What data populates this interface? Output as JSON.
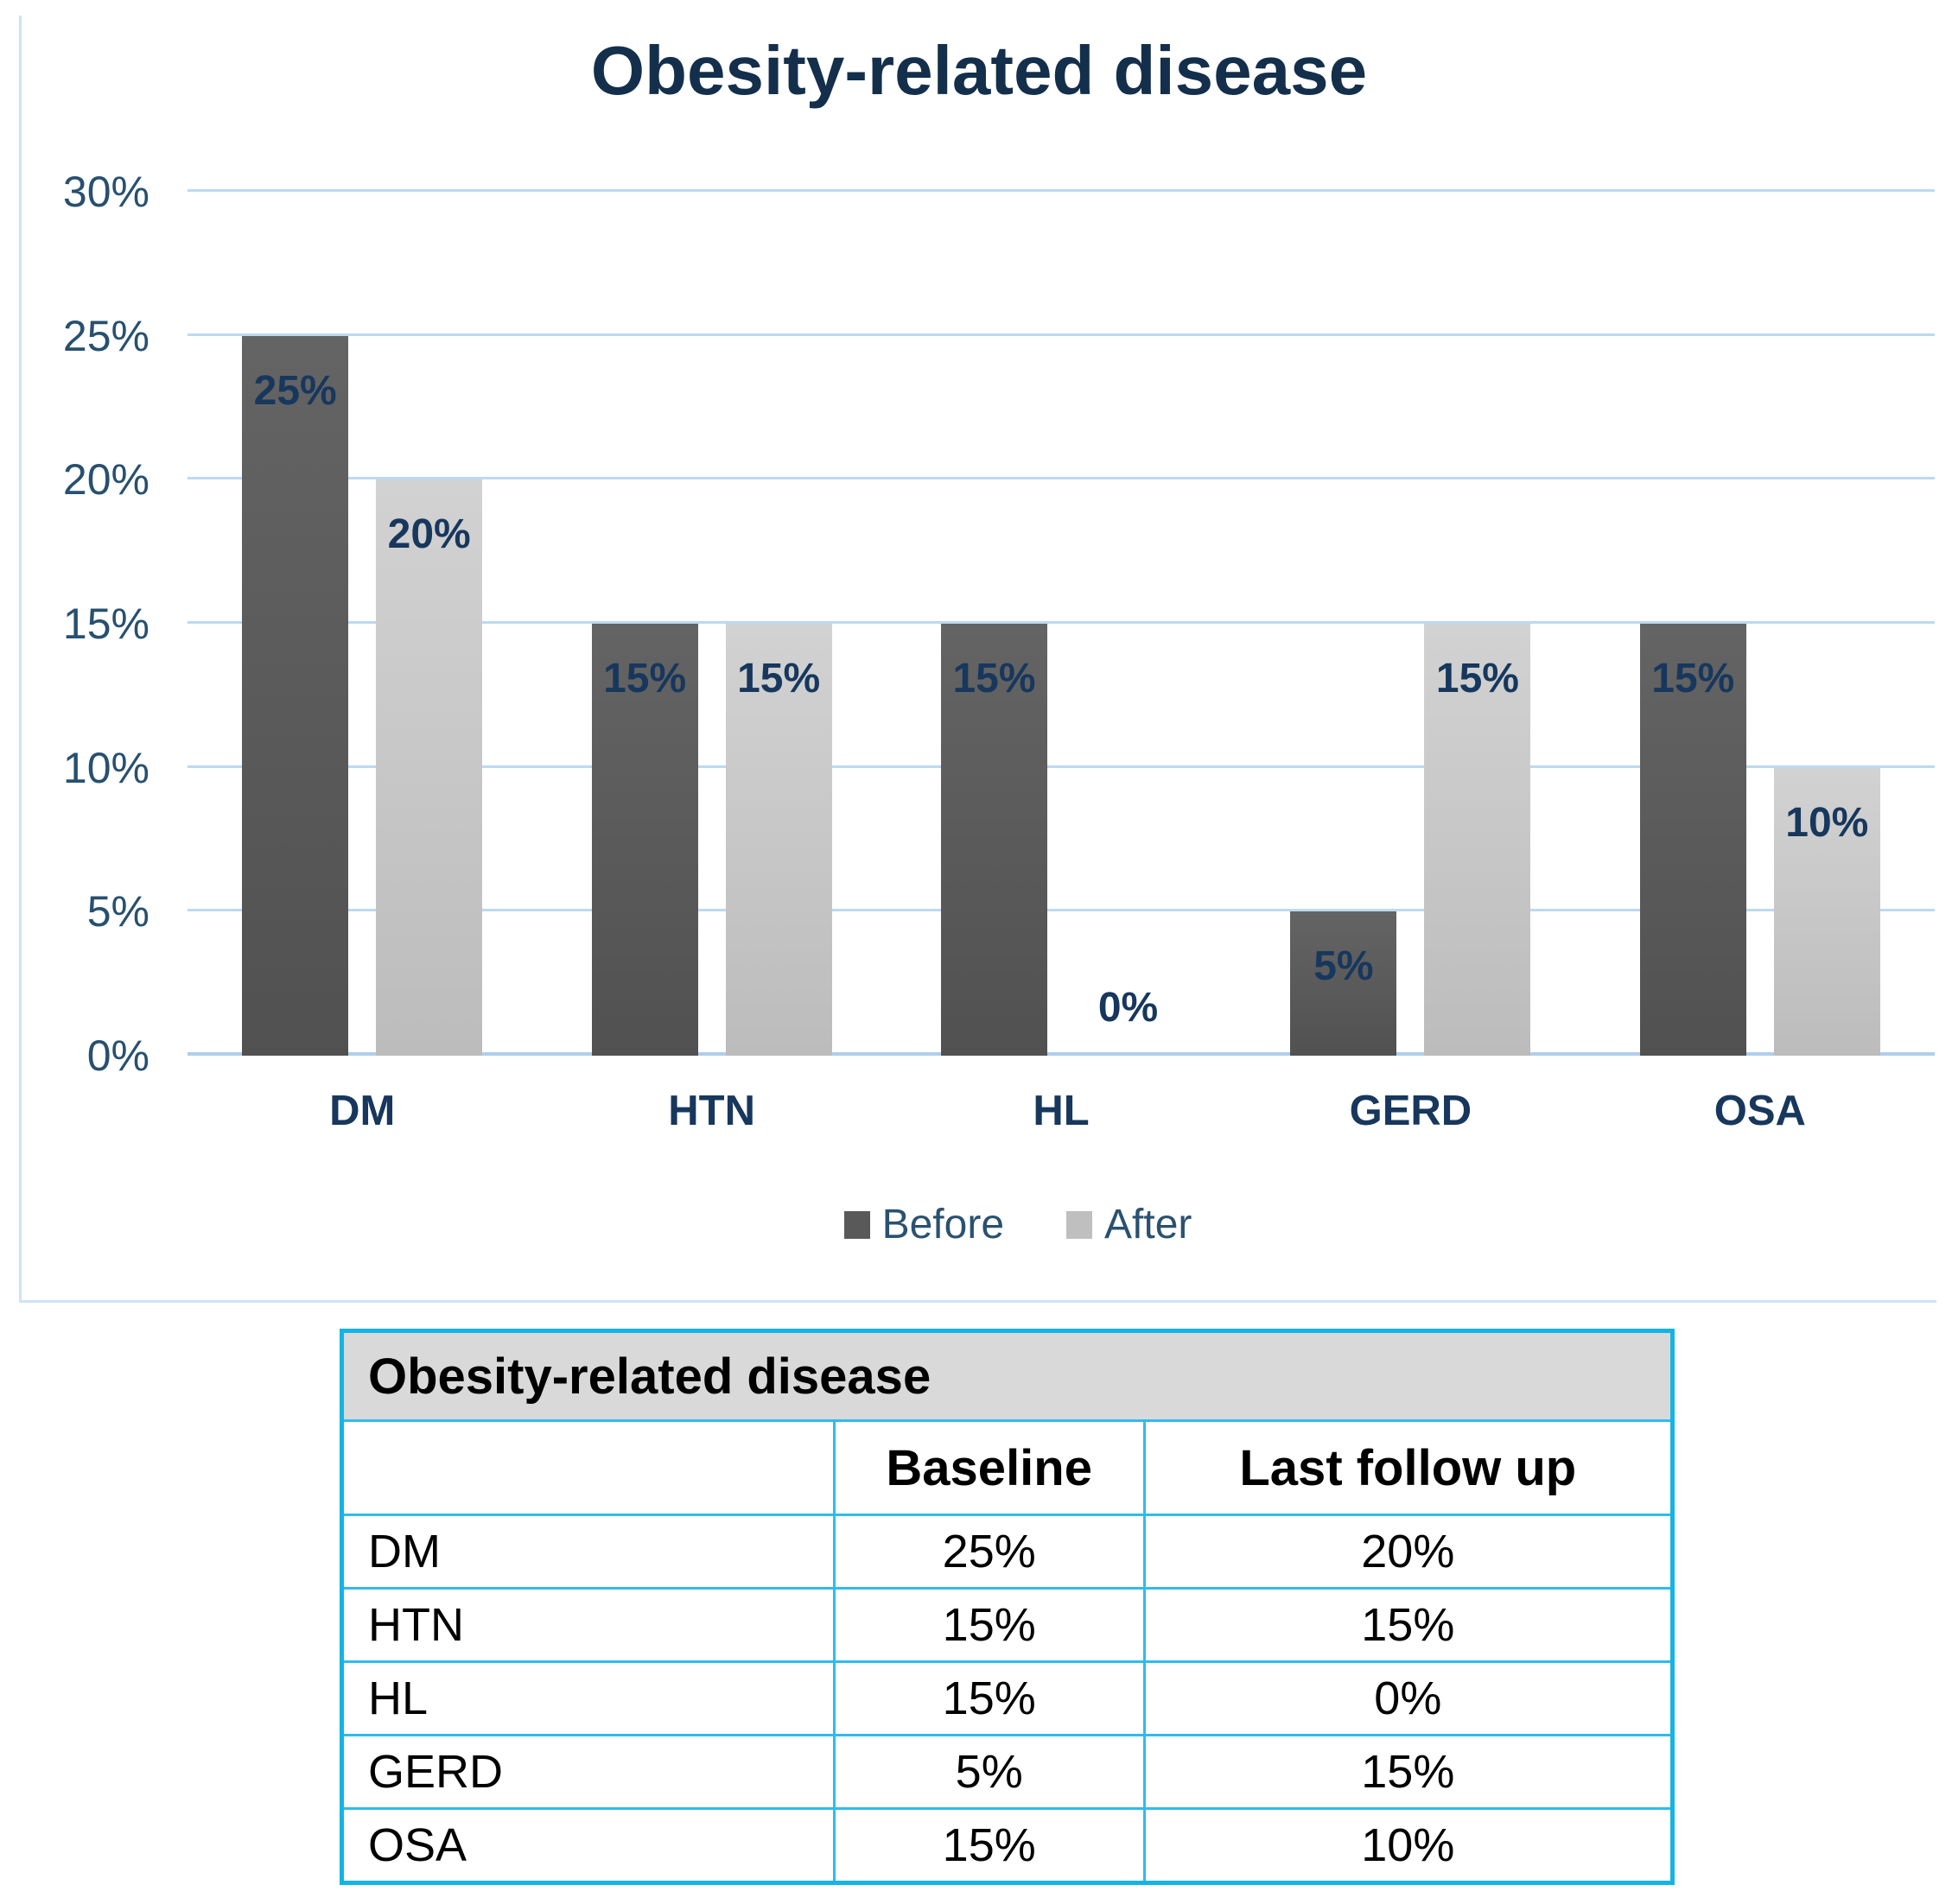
{
  "chart_data": {
    "type": "bar",
    "title": "Obesity-related disease",
    "categories": [
      "DM",
      "HTN",
      "HL",
      "GERD",
      "OSA"
    ],
    "series": [
      {
        "name": "Before",
        "color": "#595959",
        "values": [
          25,
          15,
          15,
          5,
          15
        ],
        "value_labels": [
          "25%",
          "15%",
          "15%",
          "5%",
          "15%"
        ]
      },
      {
        "name": "After",
        "color": "#bfbfbf",
        "values": [
          20,
          15,
          0,
          15,
          10
        ],
        "value_labels": [
          "20%",
          "15%",
          "0%",
          "15%",
          "10%"
        ]
      }
    ],
    "xlabel": "",
    "ylabel": "",
    "ylim": [
      0,
      30
    ],
    "yticks": [
      "0%",
      "5%",
      "10%",
      "15%",
      "20%",
      "25%",
      "30%"
    ],
    "grid": true,
    "legend_position": "bottom"
  },
  "table": {
    "title": "Obesity-related disease",
    "columns": [
      "",
      "Baseline",
      "Last follow up"
    ],
    "rows": [
      {
        "label": "DM",
        "baseline": "25%",
        "followup": "20%"
      },
      {
        "label": "HTN",
        "baseline": "15%",
        "followup": "15%"
      },
      {
        "label": "HL",
        "baseline": "15%",
        "followup": "0%"
      },
      {
        "label": "GERD",
        "baseline": "5%",
        "followup": "15%"
      },
      {
        "label": "OSA",
        "baseline": "15%",
        "followup": "10%"
      }
    ]
  },
  "colors": {
    "title_text": "#132f4b",
    "data_label_text": "#17375d",
    "tick_text": "#28506f",
    "gridline": "#bdd9f2",
    "axis_line": "#aecfec",
    "chart_frame_border": "#cfe2f6",
    "bar_before": "#595959",
    "bar_after": "#bfbfbf",
    "table_border": "#14b4e4",
    "table_header_bg": "#d9d9d9"
  }
}
